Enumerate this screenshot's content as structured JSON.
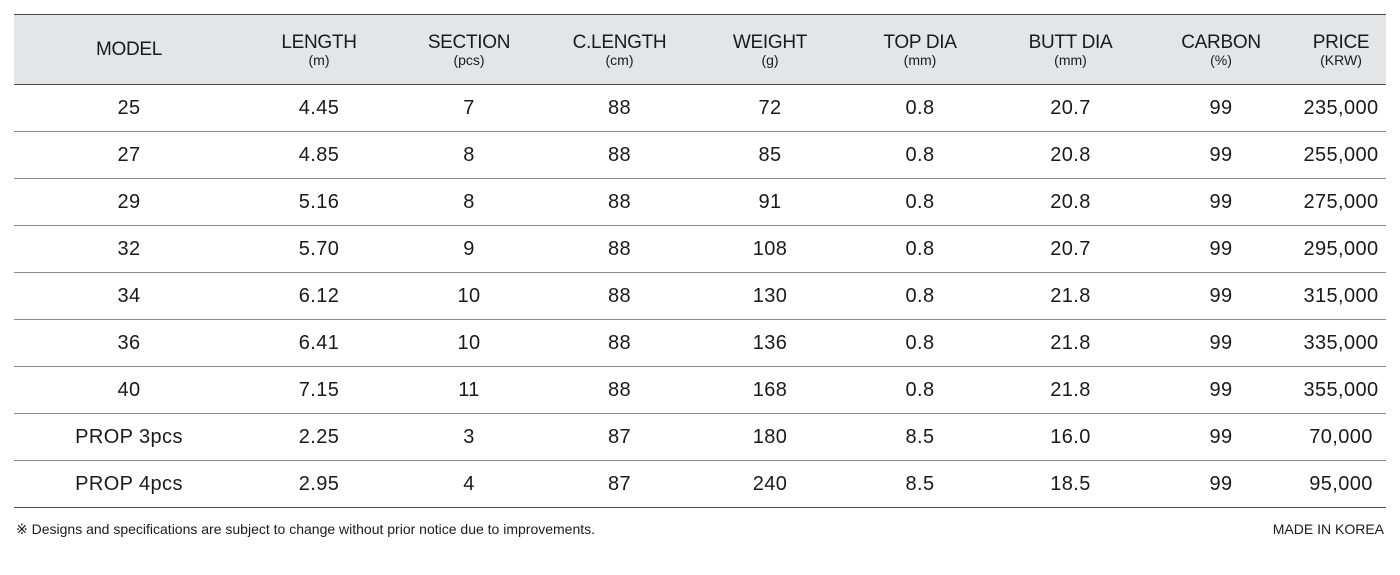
{
  "table": {
    "headers": [
      {
        "label": "MODEL",
        "unit": ""
      },
      {
        "label": "LENGTH",
        "unit": "(m)"
      },
      {
        "label": "SECTION",
        "unit": "(pcs)"
      },
      {
        "label": "C.LENGTH",
        "unit": "(cm)"
      },
      {
        "label": "WEIGHT",
        "unit": "(g)"
      },
      {
        "label": "TOP DIA",
        "unit": "(mm)"
      },
      {
        "label": "BUTT DIA",
        "unit": "(mm)"
      },
      {
        "label": "CARBON",
        "unit": "(%)"
      },
      {
        "label": "PRICE",
        "unit": "(KRW)"
      }
    ],
    "rows": [
      [
        "25",
        "4.45",
        "7",
        "88",
        "72",
        "0.8",
        "20.7",
        "99",
        "235,000"
      ],
      [
        "27",
        "4.85",
        "8",
        "88",
        "85",
        "0.8",
        "20.8",
        "99",
        "255,000"
      ],
      [
        "29",
        "5.16",
        "8",
        "88",
        "91",
        "0.8",
        "20.8",
        "99",
        "275,000"
      ],
      [
        "32",
        "5.70",
        "9",
        "88",
        "108",
        "0.8",
        "20.7",
        "99",
        "295,000"
      ],
      [
        "34",
        "6.12",
        "10",
        "88",
        "130",
        "0.8",
        "21.8",
        "99",
        "315,000"
      ],
      [
        "36",
        "6.41",
        "10",
        "88",
        "136",
        "0.8",
        "21.8",
        "99",
        "335,000"
      ],
      [
        "40",
        "7.15",
        "11",
        "88",
        "168",
        "0.8",
        "21.8",
        "99",
        "355,000"
      ],
      [
        "PROP 3pcs",
        "2.25",
        "3",
        "87",
        "180",
        "8.5",
        "16.0",
        "99",
        "70,000"
      ],
      [
        "PROP 4pcs",
        "2.95",
        "4",
        "87",
        "240",
        "8.5",
        "18.5",
        "99",
        "95,000"
      ]
    ]
  },
  "footer": {
    "note": "※ Designs and specifications are subject to change without prior notice due to improvements.",
    "origin": "MADE IN KOREA"
  }
}
